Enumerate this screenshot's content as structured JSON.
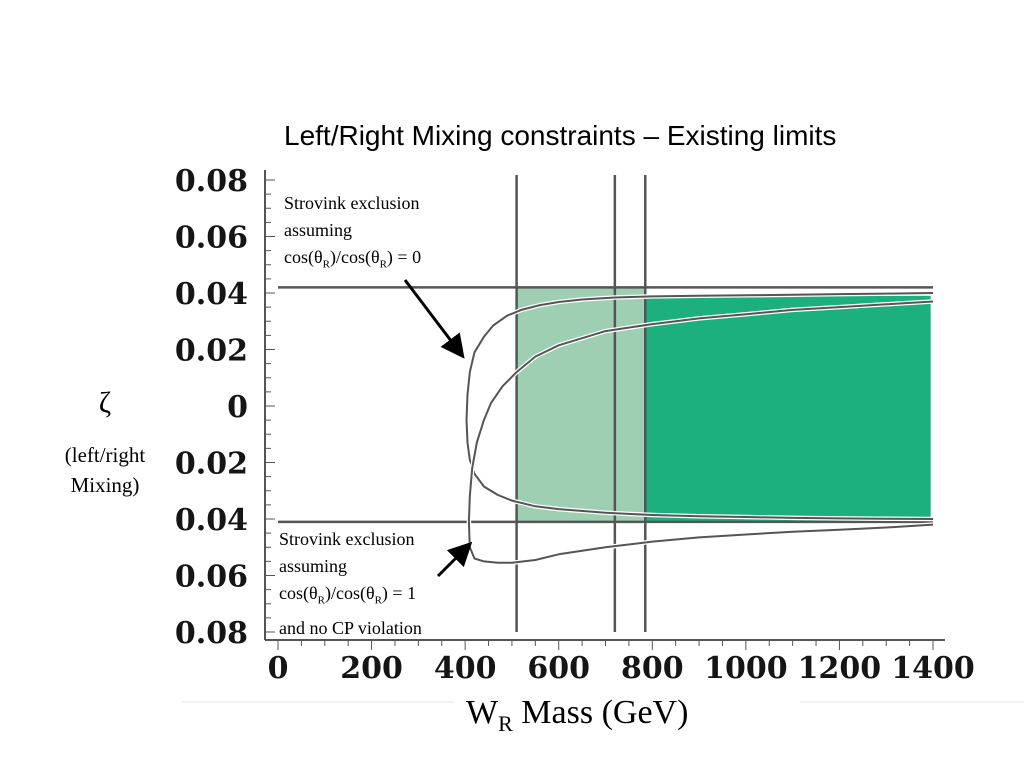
{
  "title": "Left/Right Mixing constraints – Existing limits",
  "y_symbol": "ζ",
  "y_desc_line1": "(left/right",
  "y_desc_line2": "Mixing)",
  "x_label_main": "W",
  "x_label_sub": "R",
  "x_label_rest": " Mass (GeV)",
  "annotation_top": {
    "line1": "Strovink exclusion",
    "line2": "assuming",
    "line3_a": "cos(θ",
    "line3_sub1": "R",
    "line3_b": ")/cos(θ",
    "line3_sub2": "R",
    "line3_c": ") = 0"
  },
  "annotation_bottom": {
    "line1": "Strovink exclusion",
    "line2": "assuming",
    "line3_a": "cos(θ",
    "line3_sub1": "R",
    "line3_b": ")/cos(θ",
    "line3_sub2": "R",
    "line3_c": ") = 1",
    "line4": "and no CP violation"
  },
  "colors": {
    "light_fill": "#9fcfb3",
    "dark_fill": "#1cb07e",
    "lines": "#555555"
  },
  "chart_data": {
    "type": "line",
    "title": "Left/Right Mixing constraints – Existing limits",
    "xlabel": "W_R Mass (GeV)",
    "ylabel": "ζ (left/right Mixing)",
    "xlim": [
      0,
      1400
    ],
    "ylim": [
      -0.08,
      0.08
    ],
    "x_ticks": [
      "0",
      "200",
      "400",
      "600",
      "800",
      "1000",
      "1200",
      "1400"
    ],
    "x_tick_values": [
      0,
      200,
      400,
      600,
      800,
      1000,
      1200,
      1400
    ],
    "y_ticks": [
      "0.08",
      "0.06",
      "0.04",
      "0.02",
      "0",
      "0.02",
      "0.04",
      "0.06",
      "0.08"
    ],
    "y_tick_values": [
      0.08,
      0.06,
      0.04,
      0.02,
      0,
      -0.02,
      -0.04,
      -0.06,
      -0.08
    ],
    "horizontal_lines": [
      0.042,
      -0.041
    ],
    "vertical_lines": [
      510,
      720,
      785
    ],
    "regions": [
      {
        "xmin": 510,
        "xmax": 785,
        "ymin": -0.041,
        "ymax": 0.042,
        "shade": "light"
      },
      {
        "xmin": 785,
        "xmax": 1395,
        "ymin": -0.041,
        "ymax": 0.039,
        "shade": "dark"
      }
    ],
    "series": [
      {
        "x": [
          1400,
          1300,
          1200,
          1100,
          1000,
          900,
          800,
          720,
          650,
          600,
          560,
          520,
          490,
          460,
          440,
          420,
          410,
          405,
          403,
          405,
          410,
          420,
          440,
          470,
          500,
          550,
          600,
          700,
          800,
          900,
          1000,
          1100,
          1200,
          1300,
          1400
        ],
        "y": [
          0.04,
          0.0398,
          0.0396,
          0.0394,
          0.0392,
          0.039,
          0.0388,
          0.0384,
          0.0377,
          0.0368,
          0.0357,
          0.034,
          0.032,
          0.0285,
          0.0245,
          0.019,
          0.012,
          0.004,
          -0.005,
          -0.013,
          -0.019,
          -0.024,
          -0.0285,
          -0.0315,
          -0.0335,
          -0.0355,
          -0.0365,
          -0.0378,
          -0.0386,
          -0.039,
          -0.0393,
          -0.0396,
          -0.0398,
          -0.0399,
          -0.04
        ]
      },
      {
        "x": [
          1400,
          1300,
          1200,
          1100,
          1000,
          900,
          800,
          700,
          600,
          550,
          510,
          480,
          455,
          440,
          425,
          415,
          410,
          408,
          410,
          420,
          440,
          470,
          500,
          550,
          600,
          700,
          800,
          900,
          1000,
          1100,
          1200,
          1300,
          1400
        ],
        "y": [
          0.037,
          0.036,
          0.035,
          0.034,
          0.0325,
          0.031,
          0.029,
          0.0265,
          0.0215,
          0.0175,
          0.012,
          0.007,
          0.001,
          -0.005,
          -0.013,
          -0.022,
          -0.032,
          -0.041,
          -0.05,
          -0.054,
          -0.055,
          -0.0555,
          -0.0555,
          -0.0545,
          -0.0525,
          -0.05,
          -0.048,
          -0.0465,
          -0.0455,
          -0.0445,
          -0.0438,
          -0.043,
          -0.042
        ]
      }
    ]
  }
}
